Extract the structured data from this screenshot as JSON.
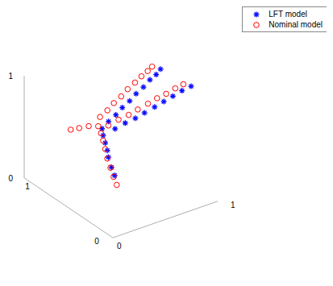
{
  "chart_data": {
    "type": "scatter3d",
    "legend": "upper right",
    "grid": false,
    "xlim": [
      0,
      1
    ],
    "ylim": [
      0,
      1
    ],
    "zlim": [
      0,
      1
    ],
    "xticks": [
      0,
      1
    ],
    "yticks": [
      0,
      1
    ],
    "zticks": [
      0,
      1
    ],
    "series": [
      {
        "name": "LFT model",
        "color": "#0000ff",
        "marker": "star",
        "x": [
          0.44,
          0.41,
          0.38,
          0.37,
          0.35,
          0.33,
          0.32,
          0.39,
          0.46,
          0.53,
          0.6,
          0.67,
          0.74,
          0.81,
          0.87,
          0.92,
          0.41,
          0.49,
          0.57,
          0.64,
          0.72,
          0.79,
          0.86,
          0.93,
          1.0
        ],
        "y": [
          0.5,
          0.5,
          0.5,
          0.5,
          0.5,
          0.5,
          0.5,
          0.51,
          0.51,
          0.52,
          0.52,
          0.53,
          0.53,
          0.54,
          0.54,
          0.55,
          0.46,
          0.44,
          0.42,
          0.4,
          0.38,
          0.36,
          0.34,
          0.32,
          0.3
        ],
        "z": [
          0.16,
          0.25,
          0.36,
          0.43,
          0.51,
          0.59,
          0.66,
          0.7,
          0.74,
          0.78,
          0.82,
          0.86,
          0.9,
          0.94,
          0.97,
          1.0,
          0.65,
          0.69,
          0.72,
          0.76,
          0.8,
          0.84,
          0.88,
          0.92,
          0.95
        ]
      },
      {
        "name": "Nominal model",
        "color": "#ff0000",
        "marker": "circle",
        "x": [
          0.46,
          0.43,
          0.4,
          0.37,
          0.35,
          0.33,
          0.31,
          0.3,
          0.26,
          0.22,
          0.19,
          0.36,
          0.43,
          0.5,
          0.57,
          0.64,
          0.71,
          0.78,
          0.84,
          0.89,
          0.38,
          0.46,
          0.54,
          0.61,
          0.69,
          0.76,
          0.83,
          0.9,
          0.96
        ],
        "y": [
          0.5,
          0.5,
          0.5,
          0.5,
          0.5,
          0.5,
          0.5,
          0.52,
          0.58,
          0.64,
          0.7,
          0.57,
          0.57,
          0.58,
          0.58,
          0.59,
          0.59,
          0.6,
          0.6,
          0.61,
          0.5,
          0.48,
          0.46,
          0.44,
          0.42,
          0.4,
          0.38,
          0.36,
          0.34
        ],
        "z": [
          0.06,
          0.15,
          0.25,
          0.35,
          0.45,
          0.54,
          0.62,
          0.68,
          0.66,
          0.62,
          0.58,
          0.72,
          0.76,
          0.8,
          0.84,
          0.88,
          0.92,
          0.95,
          0.98,
          1.0,
          0.67,
          0.71,
          0.74,
          0.78,
          0.82,
          0.86,
          0.89,
          0.93,
          0.96
        ]
      }
    ]
  }
}
